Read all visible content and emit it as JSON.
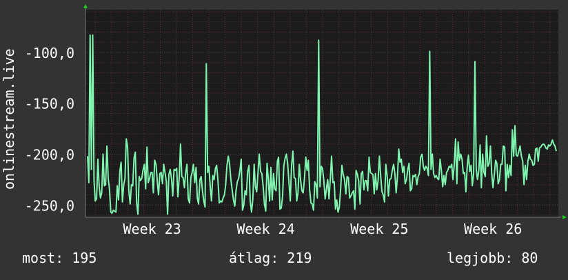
{
  "chart_data": {
    "type": "line",
    "ylabel": "onlinestream.live",
    "y_ticks": [
      -100,
      -150,
      -200,
      -250
    ],
    "y_tick_labels": [
      "-100,0",
      "-150,0",
      "-200,0",
      "-250,0"
    ],
    "ylim": [
      -262,
      -58
    ],
    "x_tick_labels": [
      "Week 23",
      "Week 24",
      "Week 25",
      "Week 26"
    ],
    "x_tick_index": [
      50,
      138,
      226,
      314
    ],
    "grid": true,
    "colors": {
      "line": "#7ff5b0",
      "background": "#1c1c1c",
      "grid_minor": "#5a3030",
      "grid_major": "#454545",
      "axis_arrow": "#22cc22"
    },
    "series": [
      {
        "values": [
          -202,
          -228,
          -83,
          -215,
          -235,
          -226,
          -246,
          -244,
          -205,
          -232,
          -243,
          -238,
          -200,
          -231,
          -230,
          -192,
          -224,
          -234,
          -257,
          -258,
          -255,
          -256,
          -257,
          -231,
          -245,
          -217,
          -208,
          -247,
          -230,
          -224,
          -185,
          -193,
          -236,
          -249,
          -230,
          -231,
          -204,
          -198,
          -248,
          -259,
          -222,
          -226,
          -224,
          -215,
          -210,
          -234,
          -193,
          -228,
          -224,
          -218,
          -218,
          -238,
          -206,
          -210,
          -227,
          -240,
          -219,
          -218,
          -229,
          -210,
          -218,
          -227,
          -259,
          -220,
          -215,
          -224,
          -241,
          -215,
          -216,
          -214,
          -242,
          -223,
          -190,
          -222,
          -223,
          -233,
          -218,
          -210,
          -244,
          -248,
          -223,
          -218,
          -210,
          -228,
          -213,
          -243,
          -249,
          -225,
          -222,
          -236,
          -246,
          -252,
          -252,
          -218,
          -212,
          -232,
          -246,
          -221,
          -225,
          -214,
          -211,
          -226,
          -248,
          -246,
          -247,
          -243,
          -240,
          -230,
          -211,
          -202,
          -210,
          -225,
          -235,
          -245,
          -251,
          -236,
          -227,
          -224,
          -216,
          -205,
          -255,
          -250,
          -236,
          -240,
          -217,
          -211,
          -246,
          -257,
          -244,
          -210,
          -232,
          -237,
          -218,
          -200,
          -217,
          -219,
          -232,
          -249,
          -256,
          -209,
          -225,
          -246,
          -213,
          -245,
          -219,
          -234,
          -236,
          -207,
          -203,
          -254,
          -253,
          -242,
          -212,
          -204,
          -200,
          -210,
          -228,
          -246,
          -211,
          -197,
          -223,
          -224,
          -246,
          -238,
          -210,
          -226,
          -236,
          -238,
          -224,
          -203,
          -216,
          -206,
          -235,
          -248,
          -249,
          -255,
          -227,
          -230,
          -243,
          -254,
          -232,
          -212,
          -214,
          -226,
          -244,
          -234,
          -225,
          -244,
          -224,
          -202,
          -228,
          -227,
          -254,
          -245,
          -257,
          -252,
          -234,
          -211,
          -220,
          -225,
          -239,
          -222,
          -223,
          -243,
          -241,
          -238,
          -236,
          -254,
          -216,
          -220,
          -227,
          -249,
          -219,
          -217,
          -235,
          -226,
          -226,
          -236,
          -203,
          -218,
          -219,
          -220,
          -239,
          -219,
          -235,
          -226,
          -202,
          -221,
          -237,
          -240,
          -247,
          -210,
          -221,
          -241,
          -225,
          -224,
          -216,
          -210,
          -219,
          -238,
          -222,
          -195,
          -208,
          -205,
          -218,
          -212,
          -229,
          -225,
          -215,
          -209,
          -236,
          -234,
          -221,
          -222,
          -220,
          -230,
          -222,
          -219,
          -203,
          -200,
          -212,
          -216,
          -212,
          -214,
          -221,
          -219,
          -215,
          -200,
          -219,
          -223,
          -221,
          -224,
          -225,
          -205,
          -216,
          -232,
          -221,
          -230,
          -218,
          -216,
          -212,
          -213,
          -210,
          -225,
          -210,
          -185,
          -229,
          -188,
          -206,
          -200,
          -205,
          -219,
          -218,
          -237,
          -213,
          -201,
          -217,
          -211,
          -231,
          -219,
          -226,
          -215,
          -225,
          -216,
          -191,
          -233,
          -200,
          -218,
          -222,
          -182,
          -212,
          -209,
          -192,
          -219,
          -233,
          -220,
          -206,
          -209,
          -229,
          -225,
          -210,
          -210,
          -192,
          -193,
          -236,
          -210,
          -223,
          -211,
          -221,
          -176,
          -202,
          -172,
          -201,
          -202,
          -197,
          -192,
          -202,
          -207,
          -230,
          -211,
          -225,
          -207,
          -200,
          -205,
          -206,
          -211,
          -210,
          -195,
          -194,
          -207,
          -194,
          -193,
          -191,
          -190,
          -191,
          -194,
          -195,
          -191,
          -192,
          -190,
          -186,
          -190,
          -192,
          -197
        ],
        "outliers_as_drawn": [
          [
            4,
            -83
          ],
          [
            92,
            -111
          ],
          [
            179,
            -88
          ],
          [
            265,
            -99
          ],
          [
            300,
            -109
          ]
        ]
      }
    ]
  },
  "stats": {
    "current": "most: 195",
    "average": "átlag: 219",
    "best": "legjobb: 80"
  }
}
